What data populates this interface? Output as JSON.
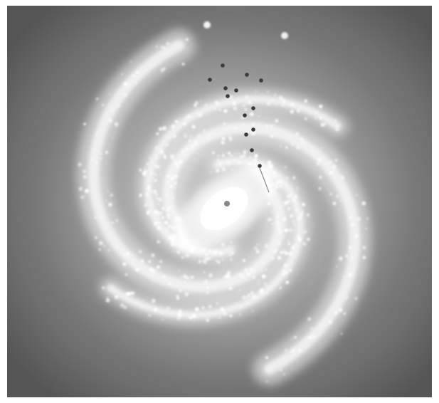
{
  "image": {
    "subject": "spiral-galaxy",
    "colors": {
      "background": "#5e5e5e",
      "arm": "#f2f2f2",
      "core": "#ffffff",
      "marker": "#3a3a3a"
    }
  }
}
